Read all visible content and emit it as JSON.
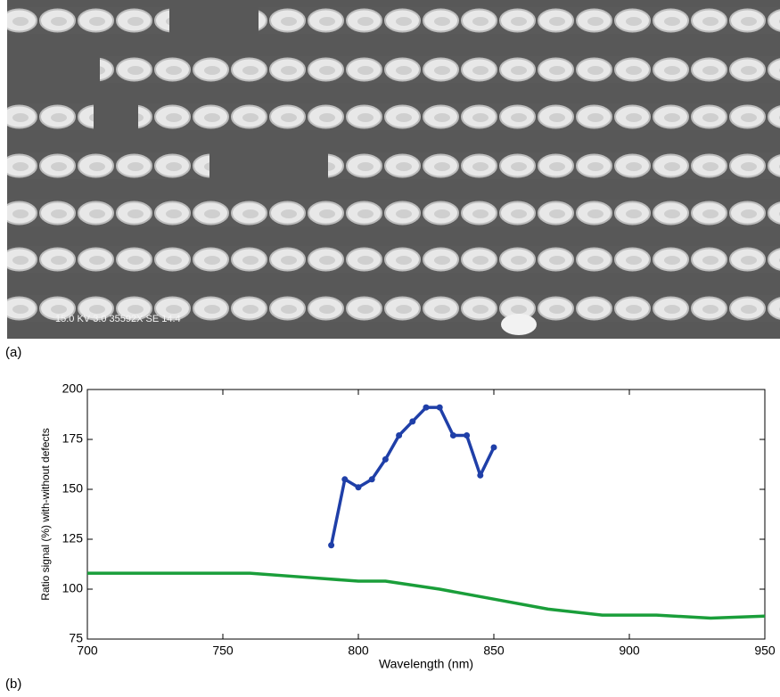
{
  "panels": {
    "a": "(a)",
    "b": "(b)",
    "sem_info": "15.0 KV 3.0 35592X SE 14.4"
  },
  "chart_data": {
    "type": "line",
    "xlabel": "Wavelength (nm)",
    "ylabel": "Ratio signal (%) with-without defects",
    "xlim": [
      700,
      950
    ],
    "xticks": [
      700,
      750,
      800,
      850,
      900,
      950
    ],
    "ylim": [
      75,
      200
    ],
    "yticks": [
      75,
      100,
      125,
      150,
      175,
      200
    ],
    "series": [
      {
        "color": "#1f3fa8",
        "markers": true,
        "x": [
          790,
          795,
          800,
          805,
          810,
          815,
          820,
          825,
          830,
          835,
          840,
          845,
          850
        ],
        "values": [
          122,
          155,
          151,
          155,
          165,
          177,
          184,
          191,
          191,
          177,
          177,
          157,
          171
        ]
      },
      {
        "color": "#1a9e3a",
        "markers": false,
        "x": [
          700,
          730,
          760,
          780,
          800,
          810,
          830,
          850,
          870,
          890,
          910,
          930,
          950
        ],
        "values": [
          108,
          108,
          108,
          106,
          104,
          104,
          100,
          95,
          90,
          87,
          87,
          85.5,
          86.5
        ]
      }
    ]
  }
}
